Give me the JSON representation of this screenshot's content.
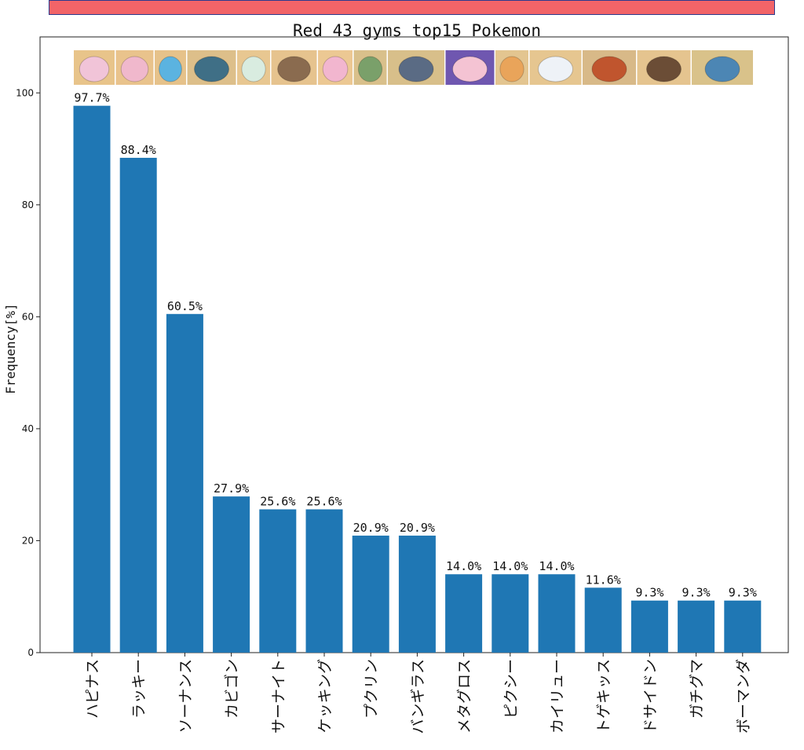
{
  "banner": {
    "color": "#f26468"
  },
  "chart_data": {
    "type": "bar",
    "title": "Red 43 gyms top15 Pokemon",
    "xlabel": "",
    "ylabel": "Frequency[%]",
    "ylim": [
      0,
      110
    ],
    "yticks": [
      0,
      20,
      40,
      60,
      80,
      100
    ],
    "grid": false,
    "bar_color": "#1f77b4",
    "categories": [
      "ハピナス",
      "ラッキー",
      "ソーナンス",
      "カビゴン",
      "サーナイト",
      "ケッキング",
      "プクリン",
      "バンギラス",
      "メタグロス",
      "ピクシー",
      "カイリュー",
      "トゲキッス",
      "ドサイドン",
      "ガチグマ",
      "ボーマンダ"
    ],
    "values": [
      97.7,
      88.4,
      60.5,
      27.9,
      25.6,
      25.6,
      20.9,
      20.9,
      14.0,
      14.0,
      14.0,
      11.6,
      9.3,
      9.3,
      9.3
    ],
    "value_labels": [
      "97.7%",
      "88.4%",
      "60.5%",
      "27.9%",
      "25.6%",
      "25.6%",
      "20.9%",
      "20.9%",
      "14.0%",
      "14.0%",
      "14.0%",
      "11.6%",
      "9.3%",
      "9.3%",
      "9.3%"
    ],
    "images": [
      {
        "name": "blissey-image",
        "bg": "#e8c48a",
        "fg": "#f1c4d8"
      },
      {
        "name": "chansey-image",
        "bg": "#e9c38c",
        "fg": "#f0b8cc"
      },
      {
        "name": "wobbuffet-image",
        "bg": "#e6c28a",
        "fg": "#5bb3e0"
      },
      {
        "name": "snorlax-image",
        "bg": "#ddbf8a",
        "fg": "#3f6f86"
      },
      {
        "name": "gardevoir-image",
        "bg": "#e8c791",
        "fg": "#d9ece0"
      },
      {
        "name": "slaking-image",
        "bg": "#e6c38e",
        "fg": "#8a6b4f"
      },
      {
        "name": "wigglytuff-image",
        "bg": "#ecc893",
        "fg": "#f2b6cf"
      },
      {
        "name": "tyranitar-image",
        "bg": "#d9c08b",
        "fg": "#7aa06a"
      },
      {
        "name": "metagross-image",
        "bg": "#d8bf8a",
        "fg": "#5a6b84"
      },
      {
        "name": "clefable-image",
        "bg": "#6f57b0",
        "fg": "#f4c3d3"
      },
      {
        "name": "dragonite-image",
        "bg": "#e3c590",
        "fg": "#e9a45a"
      },
      {
        "name": "togekiss-image",
        "bg": "#e6c690",
        "fg": "#eef2f7"
      },
      {
        "name": "rhyperior-image",
        "bg": "#d8b988",
        "fg": "#c0552e"
      },
      {
        "name": "ursaluna-image",
        "bg": "#e5c48f",
        "fg": "#6b4d36"
      },
      {
        "name": "salamence-image",
        "bg": "#d9c28a",
        "fg": "#4c86b4"
      }
    ]
  }
}
